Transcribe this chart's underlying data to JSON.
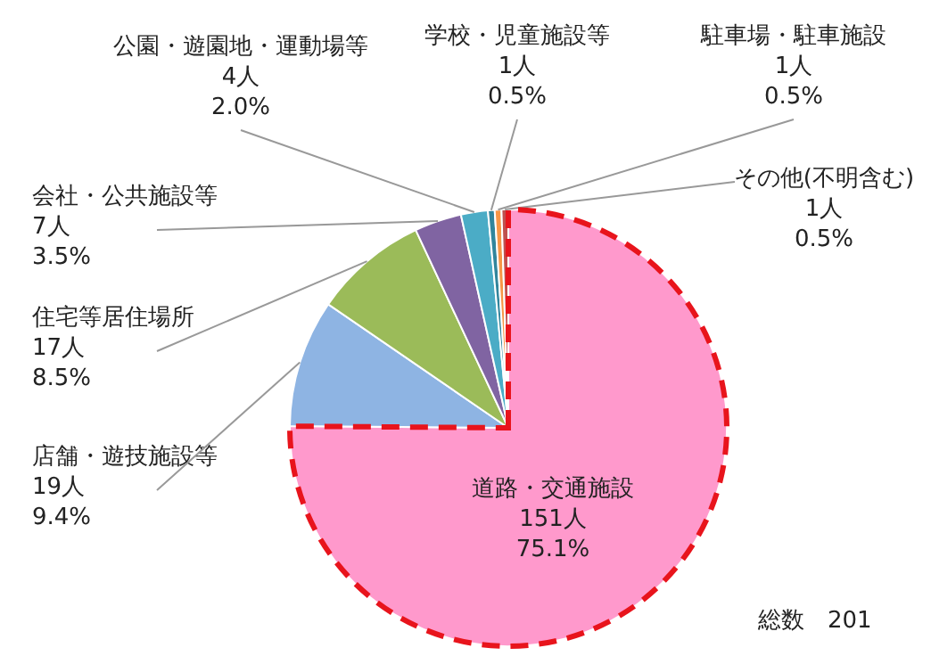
{
  "chart_data": {
    "type": "pie",
    "categories": [
      "道路・交通施設",
      "店舗・遊技施設等",
      "住宅等居住場所",
      "会社・公共施設等",
      "公園・遊園地・運動場等",
      "学校・児童施設等",
      "駐車場・駐車施設",
      "その他(不明含む)"
    ],
    "values": [
      151,
      19,
      17,
      7,
      4,
      1,
      1,
      1
    ],
    "colors": [
      "#ff99cc",
      "#8eb4e3",
      "#9bbb59",
      "#8064a2",
      "#4bacc6",
      "#31859c",
      "#f79646",
      "#c0504d"
    ],
    "value_labels": [
      "151人\n75.1%",
      "19人\n9.4%",
      "17人\n8.5%",
      "7人\n3.5%",
      "4人\n2.0%",
      "1人\n0.5%",
      "1人\n0.5%",
      "1人\n0.5%"
    ],
    "annotations": [
      "総数　201"
    ],
    "legend": false
  }
}
